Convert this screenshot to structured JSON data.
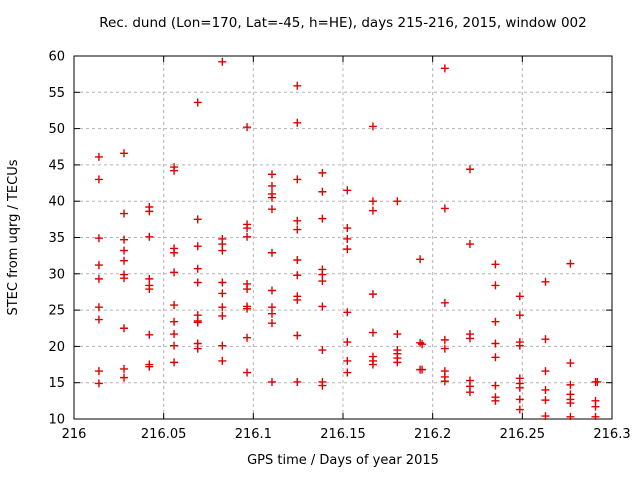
{
  "title": "Rec. dund (Lon=170, Lat=-45, h=HE), days 215-216, 2015, window 002",
  "chart_data": {
    "type": "scatter",
    "title": "Rec. dund (Lon=170, Lat=-45, h=HE), days 215-216, 2015, window 002",
    "xlabel": "GPS time / Days of year 2015",
    "ylabel": "STEC from uqrg / TECUs",
    "xlim": [
      216,
      216.3
    ],
    "ylim": [
      10,
      60
    ],
    "x_ticks": [
      "216",
      "216.05",
      "216.1",
      "216.15",
      "216.2",
      "216.25",
      "216.3"
    ],
    "y_ticks": [
      "10",
      "15",
      "20",
      "25",
      "30",
      "35",
      "40",
      "45",
      "50",
      "55",
      "60"
    ],
    "grid": true,
    "legend_position": "none",
    "marker": "plus",
    "marker_color": "#e00000",
    "grid_color": "#b4b4b4",
    "axis_color": "#000000",
    "points": [
      [
        216.0139,
        46.1
      ],
      [
        216.0139,
        43.0
      ],
      [
        216.0139,
        34.9
      ],
      [
        216.0139,
        31.2
      ],
      [
        216.0139,
        29.3
      ],
      [
        216.0139,
        25.4
      ],
      [
        216.0139,
        23.7
      ],
      [
        216.0139,
        16.6
      ],
      [
        216.0139,
        14.9
      ],
      [
        216.0279,
        46.6
      ],
      [
        216.0279,
        38.3
      ],
      [
        216.0279,
        34.7
      ],
      [
        216.0279,
        33.2
      ],
      [
        216.0279,
        31.8
      ],
      [
        216.0279,
        29.9
      ],
      [
        216.0279,
        29.4
      ],
      [
        216.0279,
        22.5
      ],
      [
        216.0279,
        16.9
      ],
      [
        216.0279,
        15.7
      ],
      [
        216.042,
        39.2
      ],
      [
        216.042,
        38.6
      ],
      [
        216.042,
        35.1
      ],
      [
        216.042,
        29.3
      ],
      [
        216.042,
        28.4
      ],
      [
        216.042,
        27.9
      ],
      [
        216.042,
        21.6
      ],
      [
        216.042,
        17.5
      ],
      [
        216.042,
        17.2
      ],
      [
        216.0558,
        44.7
      ],
      [
        216.0558,
        44.2
      ],
      [
        216.0558,
        33.5
      ],
      [
        216.0558,
        32.9
      ],
      [
        216.0558,
        30.2
      ],
      [
        216.0558,
        25.7
      ],
      [
        216.0558,
        23.4
      ],
      [
        216.0558,
        21.7
      ],
      [
        216.0558,
        20.1
      ],
      [
        216.0558,
        17.8
      ],
      [
        216.069,
        53.6
      ],
      [
        216.069,
        37.5
      ],
      [
        216.069,
        33.8
      ],
      [
        216.069,
        30.7
      ],
      [
        216.069,
        28.8
      ],
      [
        216.069,
        24.3
      ],
      [
        216.069,
        23.5
      ],
      [
        216.069,
        23.3
      ],
      [
        216.069,
        20.4
      ],
      [
        216.069,
        19.7
      ],
      [
        216.0827,
        59.2
      ],
      [
        216.0827,
        34.8
      ],
      [
        216.0827,
        34.1
      ],
      [
        216.0827,
        33.2
      ],
      [
        216.0827,
        28.8
      ],
      [
        216.0827,
        27.3
      ],
      [
        216.0827,
        25.4
      ],
      [
        216.0827,
        24.2
      ],
      [
        216.0827,
        20.1
      ],
      [
        216.0827,
        18.0
      ],
      [
        216.0965,
        50.2
      ],
      [
        216.0965,
        36.8
      ],
      [
        216.0965,
        36.3
      ],
      [
        216.0965,
        35.1
      ],
      [
        216.0965,
        28.6
      ],
      [
        216.0965,
        27.9
      ],
      [
        216.0965,
        25.5
      ],
      [
        216.0965,
        25.2
      ],
      [
        216.0965,
        21.2
      ],
      [
        216.0965,
        16.4
      ],
      [
        216.1104,
        43.7
      ],
      [
        216.1104,
        42.1
      ],
      [
        216.1104,
        41.0
      ],
      [
        216.1104,
        40.5
      ],
      [
        216.1104,
        38.9
      ],
      [
        216.1104,
        32.9
      ],
      [
        216.1104,
        27.7
      ],
      [
        216.1104,
        25.4
      ],
      [
        216.1104,
        24.5
      ],
      [
        216.1104,
        23.2
      ],
      [
        216.1104,
        15.1
      ],
      [
        216.1245,
        55.9
      ],
      [
        216.1245,
        50.8
      ],
      [
        216.1245,
        43.0
      ],
      [
        216.1245,
        37.3
      ],
      [
        216.1245,
        36.1
      ],
      [
        216.1245,
        31.9
      ],
      [
        216.1245,
        29.8
      ],
      [
        216.1245,
        26.9
      ],
      [
        216.1245,
        26.4
      ],
      [
        216.1245,
        21.5
      ],
      [
        216.1245,
        15.1
      ],
      [
        216.1385,
        43.9
      ],
      [
        216.1385,
        41.3
      ],
      [
        216.1385,
        37.6
      ],
      [
        216.1385,
        30.6
      ],
      [
        216.1385,
        29.9
      ],
      [
        216.1385,
        29.0
      ],
      [
        216.1385,
        25.5
      ],
      [
        216.1385,
        19.5
      ],
      [
        216.1385,
        15.1
      ],
      [
        216.1385,
        14.6
      ],
      [
        216.1524,
        41.5
      ],
      [
        216.1524,
        36.3
      ],
      [
        216.1524,
        34.8
      ],
      [
        216.1524,
        33.4
      ],
      [
        216.1524,
        24.7
      ],
      [
        216.1524,
        20.6
      ],
      [
        216.1524,
        18.0
      ],
      [
        216.1524,
        16.4
      ],
      [
        216.1667,
        50.3
      ],
      [
        216.1667,
        40.0
      ],
      [
        216.1667,
        38.7
      ],
      [
        216.1667,
        27.2
      ],
      [
        216.1667,
        21.9
      ],
      [
        216.1667,
        18.6
      ],
      [
        216.1667,
        18.0
      ],
      [
        216.1667,
        17.5
      ],
      [
        216.1803,
        40.0
      ],
      [
        216.1803,
        21.7
      ],
      [
        216.1803,
        19.5
      ],
      [
        216.1803,
        19.0
      ],
      [
        216.1803,
        18.4
      ],
      [
        216.1803,
        17.8
      ],
      [
        216.193,
        32.0
      ],
      [
        216.193,
        20.5
      ],
      [
        216.1941,
        20.3
      ],
      [
        216.193,
        16.8
      ],
      [
        216.1941,
        16.8
      ],
      [
        216.2068,
        58.3
      ],
      [
        216.2068,
        39.0
      ],
      [
        216.2068,
        26.0
      ],
      [
        216.2068,
        20.9
      ],
      [
        216.2068,
        19.7
      ],
      [
        216.2068,
        16.6
      ],
      [
        216.2068,
        15.8
      ],
      [
        216.2068,
        15.2
      ],
      [
        216.2208,
        44.4
      ],
      [
        216.2208,
        34.1
      ],
      [
        216.2208,
        21.7
      ],
      [
        216.2208,
        21.1
      ],
      [
        216.2208,
        15.3
      ],
      [
        216.2208,
        14.5
      ],
      [
        216.2208,
        13.7
      ],
      [
        216.235,
        31.3
      ],
      [
        216.235,
        28.4
      ],
      [
        216.235,
        23.4
      ],
      [
        216.235,
        20.4
      ],
      [
        216.235,
        18.5
      ],
      [
        216.235,
        14.6
      ],
      [
        216.235,
        13.0
      ],
      [
        216.235,
        12.5
      ],
      [
        216.2486,
        26.9
      ],
      [
        216.2486,
        24.3
      ],
      [
        216.2486,
        20.6
      ],
      [
        216.2486,
        20.1
      ],
      [
        216.2486,
        15.6
      ],
      [
        216.2486,
        14.9
      ],
      [
        216.2486,
        14.3
      ],
      [
        216.2486,
        12.7
      ],
      [
        216.2486,
        11.3
      ],
      [
        216.2629,
        28.9
      ],
      [
        216.2629,
        21.0
      ],
      [
        216.2629,
        16.6
      ],
      [
        216.2629,
        14.0
      ],
      [
        216.2629,
        12.6
      ],
      [
        216.2629,
        10.4
      ],
      [
        216.2768,
        31.4
      ],
      [
        216.2768,
        17.7
      ],
      [
        216.2768,
        14.7
      ],
      [
        216.2768,
        13.4
      ],
      [
        216.2768,
        12.7
      ],
      [
        216.2768,
        12.2
      ],
      [
        216.2768,
        10.3
      ],
      [
        216.2908,
        15.1
      ],
      [
        216.2918,
        15.1
      ],
      [
        216.2908,
        12.5
      ],
      [
        216.2908,
        11.7
      ],
      [
        216.2908,
        10.3
      ]
    ]
  }
}
